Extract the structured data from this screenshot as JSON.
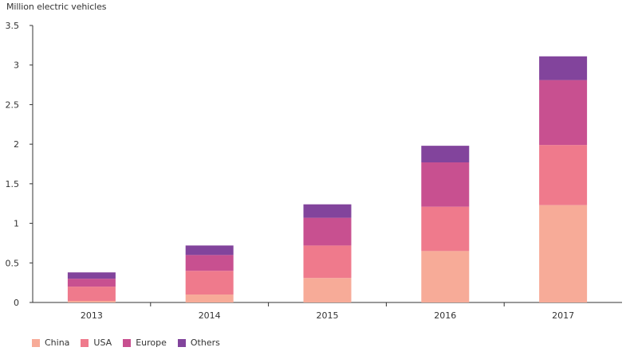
{
  "chart_data": {
    "type": "bar",
    "stacked": true,
    "title": "",
    "xlabel": "",
    "ylabel": "Million electric vehicles",
    "ylim": [
      0,
      3.5
    ],
    "yticks": [
      "0",
      "0.5",
      "1",
      "1.5",
      "2",
      "2.5",
      "3",
      "3.5"
    ],
    "grid": false,
    "legend_position": "bottom-left",
    "categories": [
      "2013",
      "2014",
      "2015",
      "2016",
      "2017"
    ],
    "series": [
      {
        "name": "China",
        "color": "#f7ab98",
        "values": [
          0.02,
          0.1,
          0.31,
          0.65,
          1.23
        ]
      },
      {
        "name": "USA",
        "color": "#ef7a8c",
        "values": [
          0.18,
          0.3,
          0.41,
          0.56,
          0.76
        ]
      },
      {
        "name": "Europe",
        "color": "#c85090",
        "values": [
          0.1,
          0.2,
          0.35,
          0.56,
          0.82
        ]
      },
      {
        "name": "Others",
        "color": "#82449c",
        "values": [
          0.08,
          0.12,
          0.17,
          0.21,
          0.3
        ]
      }
    ]
  }
}
